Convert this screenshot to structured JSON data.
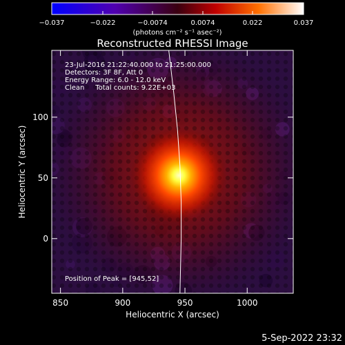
{
  "chart_data": {
    "type": "heatmap",
    "title": "Reconstructed RHESSI Image",
    "xlabel": "Heliocentric X (arcsec)",
    "ylabel": "Heliocentric Y (arcsec)",
    "xlim": [
      843,
      1037
    ],
    "ylim": [
      -45,
      155
    ],
    "x_ticks": [
      850,
      900,
      950,
      1000
    ],
    "y_ticks": [
      0,
      50,
      100
    ],
    "x_tick_labels": [
      "850",
      "900",
      "950",
      "1000"
    ],
    "y_tick_labels": [
      "0",
      "50",
      "100"
    ],
    "colorbar": {
      "range": [
        -0.037,
        0.037
      ],
      "tick_values": [
        -0.037,
        -0.022,
        -0.0074,
        0.0074,
        0.022,
        0.037
      ],
      "tick_labels": [
        "−0.037",
        "−0.022",
        "−0.0074",
        "0.0074",
        "0.022",
        "0.037"
      ],
      "unit_label": "(photons cm⁻² s⁻¹ asec⁻²)"
    },
    "info_lines": [
      "23-Jul-2016 21:22:40.000 to 21:25:00.000",
      "Detectors: 3F 8F, Att 0",
      "Energy Range: 6.0 - 12.0 keV",
      "Clean     Total counts: 9.22E+03"
    ],
    "peak_label": "Position of Peak = [945,52]",
    "peak": {
      "x": 945,
      "y": 52
    },
    "limb_curve": [
      [
        937,
        155
      ],
      [
        941,
        120
      ],
      [
        944,
        90
      ],
      [
        946,
        60
      ],
      [
        947,
        30
      ],
      [
        947,
        0
      ],
      [
        946,
        -45
      ]
    ]
  },
  "footer": {
    "timestamp": "5-Sep-2022 23:32"
  }
}
